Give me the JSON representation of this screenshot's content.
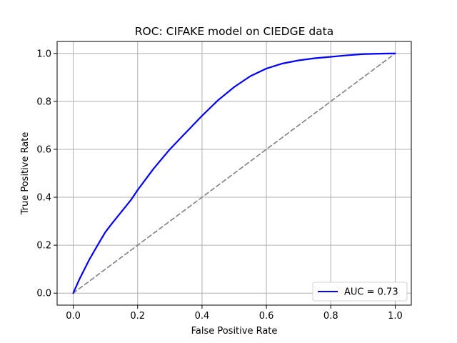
{
  "chart_data": {
    "type": "line",
    "title": "ROC: CIFAKE model on CIEDGE data",
    "xlabel": "False Positive Rate",
    "ylabel": "True Positive Rate",
    "xlim": [
      -0.05,
      1.05
    ],
    "ylim": [
      -0.05,
      1.05
    ],
    "xticks": [
      0.0,
      0.2,
      0.4,
      0.6,
      0.8,
      1.0
    ],
    "yticks": [
      0.0,
      0.2,
      0.4,
      0.6,
      0.8,
      1.0
    ],
    "xtick_labels": [
      "0.0",
      "0.2",
      "0.4",
      "0.6",
      "0.8",
      "1.0"
    ],
    "ytick_labels": [
      "0.0",
      "0.2",
      "0.4",
      "0.6",
      "0.8",
      "1.0"
    ],
    "grid": true,
    "legend_position": "lower-right",
    "series": [
      {
        "name": "AUC = 0.73",
        "color": "#0000ff",
        "style": "solid",
        "x": [
          0.0,
          0.02,
          0.05,
          0.08,
          0.1,
          0.12,
          0.15,
          0.18,
          0.2,
          0.25,
          0.3,
          0.35,
          0.4,
          0.45,
          0.5,
          0.55,
          0.6,
          0.65,
          0.7,
          0.75,
          0.8,
          0.85,
          0.9,
          0.95,
          1.0
        ],
        "y": [
          0.0,
          0.06,
          0.14,
          0.21,
          0.255,
          0.29,
          0.34,
          0.39,
          0.43,
          0.52,
          0.6,
          0.67,
          0.74,
          0.805,
          0.86,
          0.905,
          0.937,
          0.958,
          0.971,
          0.98,
          0.986,
          0.992,
          0.997,
          0.999,
          1.0
        ]
      },
      {
        "name": "",
        "color": "#808080",
        "style": "dashed",
        "x": [
          0.0,
          1.0
        ],
        "y": [
          0.0,
          1.0
        ]
      }
    ]
  }
}
